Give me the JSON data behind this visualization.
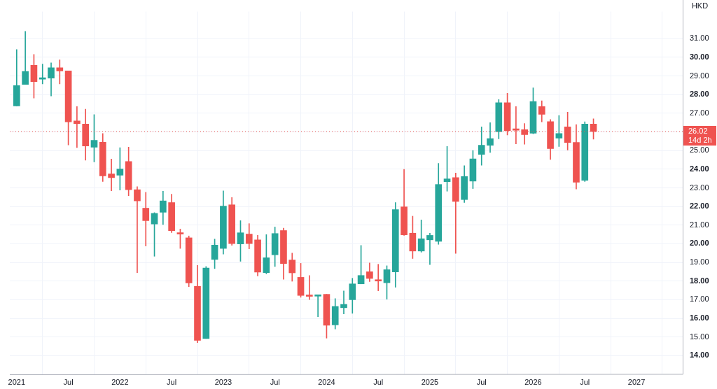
{
  "chart_data": {
    "type": "candlestick",
    "ylabel": "HKD",
    "x": [
      "2021-01",
      "2021-02",
      "2021-03",
      "2021-04",
      "2021-05",
      "2021-06",
      "2021-07",
      "2021-08",
      "2021-09",
      "2021-10",
      "2021-11",
      "2021-12",
      "2022-01",
      "2022-02",
      "2022-03",
      "2022-04",
      "2022-05",
      "2022-06",
      "2022-07",
      "2022-08",
      "2022-09",
      "2022-10",
      "2022-11",
      "2022-12",
      "2023-01",
      "2023-02",
      "2023-03",
      "2023-04",
      "2023-05",
      "2023-06",
      "2023-07",
      "2023-08",
      "2023-09",
      "2023-10",
      "2023-11",
      "2023-12",
      "2024-01",
      "2024-02",
      "2024-03",
      "2024-04",
      "2024-05",
      "2024-06",
      "2024-07",
      "2024-08",
      "2024-09",
      "2024-10",
      "2024-11",
      "2024-12",
      "2025-01",
      "2025-02",
      "2025-03",
      "2025-04",
      "2025-05",
      "2025-06",
      "2025-07",
      "2025-08",
      "2025-09",
      "2025-10",
      "2025-11",
      "2025-12",
      "2026-01",
      "2026-02",
      "2026-03",
      "2026-04",
      "2026-05",
      "2026-06",
      "2026-07",
      "2026-08"
    ],
    "ohlc": [
      [
        27.39,
        30.42,
        27.39,
        28.48
      ],
      [
        28.55,
        31.39,
        28.55,
        29.24
      ],
      [
        29.57,
        30.15,
        27.81,
        28.7
      ],
      [
        28.83,
        29.64,
        28.57,
        28.87
      ],
      [
        28.88,
        29.7,
        27.93,
        29.44
      ],
      [
        29.44,
        29.86,
        28.57,
        29.27
      ],
      [
        29.27,
        29.27,
        25.3,
        26.54
      ],
      [
        26.59,
        27.36,
        25.16,
        26.44
      ],
      [
        26.42,
        27.22,
        24.48,
        25.24
      ],
      [
        25.18,
        26.93,
        24.39,
        25.55
      ],
      [
        25.44,
        25.91,
        23.34,
        23.64
      ],
      [
        23.75,
        24.54,
        22.84,
        23.55
      ],
      [
        23.68,
        25.15,
        22.88,
        24.01
      ],
      [
        24.41,
        25.18,
        22.58,
        22.9
      ],
      [
        22.9,
        23.06,
        18.45,
        22.3
      ],
      [
        21.91,
        22.76,
        19.88,
        21.24
      ],
      [
        21.06,
        21.67,
        19.33,
        21.63
      ],
      [
        21.69,
        22.82,
        21.03,
        22.3
      ],
      [
        22.21,
        22.66,
        20.6,
        20.7
      ],
      [
        20.56,
        20.79,
        19.75,
        20.52
      ],
      [
        20.32,
        20.42,
        17.7,
        17.9
      ],
      [
        17.72,
        18.84,
        14.7,
        14.82
      ],
      [
        14.92,
        18.78,
        14.92,
        18.7
      ],
      [
        19.16,
        20.25,
        18.67,
        19.93
      ],
      [
        19.75,
        22.84,
        19.45,
        22.02
      ],
      [
        22.09,
        22.48,
        19.92,
        20.01
      ],
      [
        19.99,
        21.24,
        19.06,
        20.59
      ],
      [
        20.52,
        21.08,
        19.73,
        20.01
      ],
      [
        20.21,
        20.45,
        18.27,
        18.48
      ],
      [
        18.45,
        20.49,
        18.39,
        19.25
      ],
      [
        19.41,
        20.9,
        18.78,
        20.55
      ],
      [
        20.71,
        20.84,
        18.1,
        18.94
      ],
      [
        19.13,
        19.5,
        17.99,
        18.44
      ],
      [
        18.2,
        18.95,
        17.13,
        17.23
      ],
      [
        17.22,
        18.3,
        17.01,
        17.18
      ],
      [
        17.19,
        17.23,
        16.09,
        17.23
      ],
      [
        17.29,
        17.29,
        14.94,
        15.63
      ],
      [
        15.65,
        17.06,
        15.43,
        16.64
      ],
      [
        16.57,
        17.47,
        16.24,
        16.75
      ],
      [
        17.0,
        18.15,
        16.27,
        17.85
      ],
      [
        17.85,
        19.91,
        17.85,
        18.3
      ],
      [
        18.5,
        18.97,
        17.97,
        18.14
      ],
      [
        18.04,
        18.9,
        17.48,
        18.0
      ],
      [
        17.91,
        18.82,
        17.03,
        18.61
      ],
      [
        18.49,
        22.21,
        17.67,
        21.83
      ],
      [
        21.98,
        23.99,
        20.45,
        20.48
      ],
      [
        20.57,
        21.48,
        19.21,
        19.61
      ],
      [
        19.61,
        21.28,
        19.55,
        20.27
      ],
      [
        20.21,
        20.57,
        18.88,
        20.45
      ],
      [
        20.13,
        24.31,
        19.97,
        23.18
      ],
      [
        23.33,
        25.22,
        22.82,
        23.48
      ],
      [
        23.55,
        23.79,
        19.48,
        22.27
      ],
      [
        22.37,
        24.19,
        22.21,
        23.61
      ],
      [
        23.36,
        25.0,
        22.96,
        24.55
      ],
      [
        24.79,
        26.27,
        24.21,
        25.28
      ],
      [
        25.28,
        26.49,
        24.9,
        25.64
      ],
      [
        26.01,
        27.73,
        25.63,
        27.56
      ],
      [
        27.56,
        28.07,
        25.83,
        26.07
      ],
      [
        26.13,
        27.36,
        25.36,
        26.09
      ],
      [
        26.12,
        26.45,
        25.34,
        25.85
      ],
      [
        25.93,
        28.36,
        25.9,
        27.63
      ],
      [
        27.36,
        27.67,
        26.54,
        26.94
      ],
      [
        26.55,
        26.66,
        24.52,
        25.1
      ],
      [
        25.67,
        26.88,
        25.22,
        25.91
      ],
      [
        26.27,
        27.06,
        25.03,
        25.43
      ],
      [
        25.43,
        26.39,
        22.94,
        23.3
      ],
      [
        23.4,
        26.54,
        23.34,
        26.42
      ],
      [
        26.42,
        26.7,
        25.61,
        26.02
      ]
    ],
    "colors": [
      "#26a69a",
      "#26a69a",
      "#ef5350",
      "#26a69a",
      "#26a69a",
      "#ef5350",
      "#ef5350",
      "#ef5350",
      "#ef5350",
      "#26a69a",
      "#ef5350",
      "#ef5350",
      "#26a69a",
      "#ef5350",
      "#ef5350",
      "#ef5350",
      "#26a69a",
      "#26a69a",
      "#ef5350",
      "#ef5350",
      "#ef5350",
      "#ef5350",
      "#26a69a",
      "#26a69a",
      "#26a69a",
      "#ef5350",
      "#26a69a",
      "#ef5350",
      "#ef5350",
      "#26a69a",
      "#26a69a",
      "#ef5350",
      "#ef5350",
      "#ef5350",
      "#ef5350",
      "#26a69a",
      "#ef5350",
      "#26a69a",
      "#26a69a",
      "#26a69a",
      "#26a69a",
      "#ef5350",
      "#ef5350",
      "#26a69a",
      "#26a69a",
      "#ef5350",
      "#ef5350",
      "#26a69a",
      "#26a69a",
      "#26a69a",
      "#26a69a",
      "#ef5350",
      "#26a69a",
      "#26a69a",
      "#26a69a",
      "#26a69a",
      "#26a69a",
      "#ef5350",
      "#ef5350",
      "#ef5350",
      "#26a69a",
      "#ef5350",
      "#ef5350",
      "#26a69a",
      "#ef5350",
      "#ef5350",
      "#26a69a",
      "#ef5350"
    ],
    "xlim": [
      "2020-12-07",
      "2027-06-12"
    ],
    "xticks": [
      {
        "value": "2021-01",
        "label": "2021"
      },
      {
        "value": "2021-07",
        "label": "Jul"
      },
      {
        "value": "2022-01",
        "label": "2022"
      },
      {
        "value": "2022-07",
        "label": "Jul"
      },
      {
        "value": "2023-01",
        "label": "2023"
      },
      {
        "value": "2023-07",
        "label": "Jul"
      },
      {
        "value": "2024-01",
        "label": "2024"
      },
      {
        "value": "2024-07",
        "label": "Jul"
      },
      {
        "value": "2025-01",
        "label": "2025"
      },
      {
        "value": "2025-07",
        "label": "Jul"
      },
      {
        "value": "2026-01",
        "label": "2026"
      },
      {
        "value": "2026-07",
        "label": "Jul"
      },
      {
        "value": "2027-01",
        "label": "2027"
      }
    ],
    "ylim": [
      13.0,
      32.45
    ],
    "yticks": [
      {
        "value": 14,
        "label": "14.00"
      },
      {
        "value": 15,
        "label": "15.00"
      },
      {
        "value": 16,
        "label": "16.00"
      },
      {
        "value": 17,
        "label": "17.00"
      },
      {
        "value": 18,
        "label": "18.00"
      },
      {
        "value": 19,
        "label": "19.00"
      },
      {
        "value": 20,
        "label": "20.00"
      },
      {
        "value": 21,
        "label": "21.00"
      },
      {
        "value": 22,
        "label": "22.00"
      },
      {
        "value": 23,
        "label": "23.00"
      },
      {
        "value": 24,
        "label": "24.00"
      },
      {
        "value": 25,
        "label": "25.00"
      },
      {
        "value": 26,
        "label": null
      },
      {
        "value": 27,
        "label": "27.00"
      },
      {
        "value": 28,
        "label": "28.00"
      },
      {
        "value": 29,
        "label": "29.00"
      },
      {
        "value": 30,
        "label": "30.00"
      },
      {
        "value": 31,
        "label": "31.00"
      }
    ],
    "ref_lines": [
      {
        "axis": "y",
        "value": 26.02,
        "label": "26.02",
        "color": "#ef5350",
        "line_style": "dotted"
      }
    ],
    "annotations": [
      "14d 2h"
    ],
    "grid": true
  }
}
